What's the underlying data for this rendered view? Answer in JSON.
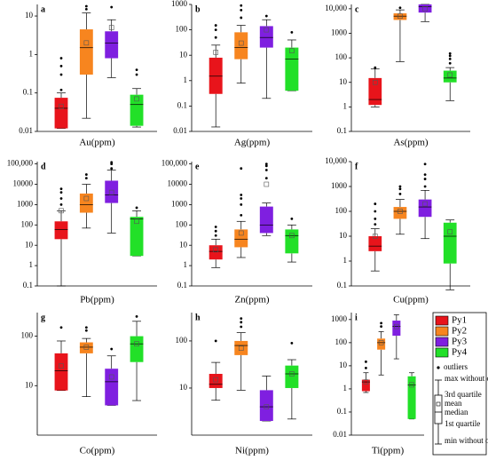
{
  "chart_data": [
    {
      "type": "box",
      "panel_label": "a",
      "x_label": "Au(ppm)",
      "log_scale": true,
      "ylim": [
        0.01,
        20
      ],
      "yticks": [
        0.01,
        0.1,
        1,
        10
      ],
      "series": [
        {
          "name": "Py1",
          "color": "#e8141b",
          "min": 0.012,
          "q1": 0.012,
          "median": 0.04,
          "q3": 0.075,
          "max": 0.1,
          "mean": 0.045,
          "outliers": [
            0.12,
            0.3,
            0.5,
            0.8
          ]
        },
        {
          "name": "Py2",
          "color": "#f7851f",
          "min": 0.022,
          "q1": 0.3,
          "median": 1.5,
          "q3": 4.5,
          "max": 12,
          "mean": 2,
          "outliers": [
            15,
            18
          ]
        },
        {
          "name": "Py3",
          "color": "#7f1fe0",
          "min": 0.25,
          "q1": 0.8,
          "median": 2,
          "q3": 4,
          "max": 8,
          "mean": 5,
          "outliers": [
            17
          ]
        },
        {
          "name": "Py4",
          "color": "#22e028",
          "min": 0.013,
          "q1": 0.014,
          "median": 0.05,
          "q3": 0.09,
          "max": 0.13,
          "mean": 0.07,
          "outliers": [
            0.3,
            0.4
          ]
        }
      ]
    },
    {
      "type": "box",
      "panel_label": "b",
      "x_label": "Ag(ppm)",
      "log_scale": true,
      "ylim": [
        0.01,
        1000
      ],
      "yticks": [
        0.01,
        0.1,
        1,
        10,
        100,
        1000
      ],
      "series": [
        {
          "name": "Py1",
          "color": "#e8141b",
          "min": 0.015,
          "q1": 0.3,
          "median": 1.5,
          "q3": 8,
          "max": 25,
          "mean": 13,
          "outliers": [
            50,
            100,
            150
          ]
        },
        {
          "name": "Py2",
          "color": "#f7851f",
          "min": 0.8,
          "q1": 7,
          "median": 20,
          "q3": 80,
          "max": 150,
          "mean": 30,
          "outliers": [
            300,
            600,
            900
          ]
        },
        {
          "name": "Py3",
          "color": "#7f1fe0",
          "min": 0.2,
          "q1": 20,
          "median": 50,
          "q3": 140,
          "max": 250,
          "mean": 100,
          "outliers": [
            350
          ]
        },
        {
          "name": "Py4",
          "color": "#22e028",
          "min": 0.4,
          "q1": 0.4,
          "median": 7,
          "q3": 20,
          "max": 40,
          "mean": 15,
          "outliers": [
            80
          ]
        }
      ]
    },
    {
      "type": "box",
      "panel_label": "c",
      "x_label": "As(ppm)",
      "log_scale": true,
      "ylim": [
        0.1,
        15000
      ],
      "yticks": [
        0.1,
        1,
        10,
        100,
        1000,
        {
          "value": 10000,
          "label": "10,000"
        }
      ],
      "series": [
        {
          "name": "Py1",
          "color": "#e8141b",
          "min": 1,
          "q1": 1.2,
          "median": 2,
          "q3": 15,
          "max": 35,
          "mean": 10,
          "outliers": [
            40
          ]
        },
        {
          "name": "Py2",
          "color": "#f7851f",
          "min": 70,
          "q1": 3500,
          "median": 5000,
          "q3": 6500,
          "max": 9000,
          "mean": 5000,
          "outliers": [
            11000
          ]
        },
        {
          "name": "Py3",
          "color": "#7f1fe0",
          "min": 3000,
          "q1": 7000,
          "median": 12000,
          "q3": 15000,
          "max": 15000,
          "mean": 10000,
          "outliers": []
        },
        {
          "name": "Py4",
          "color": "#22e028",
          "min": 1.8,
          "q1": 10,
          "median": 15,
          "q3": 30,
          "max": 40,
          "mean": 20,
          "outliers": [
            60,
            90,
            120,
            150
          ]
        }
      ]
    },
    {
      "type": "box",
      "panel_label": "d",
      "x_label": "Pb(ppm)",
      "log_scale": true,
      "ylim": [
        0.1,
        130000
      ],
      "yticks": [
        0.1,
        1,
        10,
        100,
        1000,
        10000,
        {
          "value": 100000,
          "label": "100,000"
        }
      ],
      "series": [
        {
          "name": "Py1",
          "color": "#e8141b",
          "min": 0.1,
          "q1": 20,
          "median": 60,
          "q3": 150,
          "max": 500,
          "mean": 500,
          "outliers": [
            1000,
            2000,
            4000,
            6000
          ]
        },
        {
          "name": "Py2",
          "color": "#f7851f",
          "min": 70,
          "q1": 400,
          "median": 1000,
          "q3": 3500,
          "max": 10000,
          "mean": 2000,
          "outliers": [
            20000,
            30000
          ]
        },
        {
          "name": "Py3",
          "color": "#7f1fe0",
          "min": 40,
          "q1": 1200,
          "median": 3000,
          "q3": 15000,
          "max": 50000,
          "mean": 4000,
          "outliers": [
            60000,
            100000,
            120000
          ]
        },
        {
          "name": "Py4",
          "color": "#22e028",
          "min": 3,
          "q1": 3,
          "median": 200,
          "q3": 250,
          "max": 500,
          "mean": 150,
          "outliers": [
            700
          ]
        }
      ]
    },
    {
      "type": "box",
      "panel_label": "e",
      "x_label": "Zn(ppm)",
      "log_scale": true,
      "ylim": [
        0.1,
        130000
      ],
      "yticks": [
        0.1,
        1,
        10,
        100,
        1000,
        10000,
        {
          "value": 100000,
          "label": "100,000"
        }
      ],
      "series": [
        {
          "name": "Py1",
          "color": "#e8141b",
          "min": 0.8,
          "q1": 2,
          "median": 5,
          "q3": 10,
          "max": 20,
          "mean": 6,
          "outliers": [
            30,
            50,
            80
          ]
        },
        {
          "name": "Py2",
          "color": "#f7851f",
          "min": 2.5,
          "q1": 8,
          "median": 20,
          "q3": 60,
          "max": 150,
          "mean": 40,
          "outliers": [
            300,
            1000,
            2000,
            3000,
            60000
          ]
        },
        {
          "name": "Py3",
          "color": "#7f1fe0",
          "min": 30,
          "q1": 40,
          "median": 100,
          "q3": 800,
          "max": 1200,
          "mean": 10000,
          "outliers": [
            20000,
            50000,
            80000,
            100000
          ]
        },
        {
          "name": "Py4",
          "color": "#22e028",
          "min": 1.5,
          "q1": 4,
          "median": 30,
          "q3": 60,
          "max": 100,
          "mean": 30,
          "outliers": [
            200
          ]
        }
      ]
    },
    {
      "type": "box",
      "panel_label": "f",
      "x_label": "Cu(ppm)",
      "log_scale": true,
      "ylim": [
        0.1,
        10000
      ],
      "yticks": [
        0.1,
        1,
        10,
        100,
        1000,
        {
          "value": 10000,
          "label": "10,000"
        }
      ],
      "series": [
        {
          "name": "Py1",
          "color": "#e8141b",
          "min": 0.4,
          "q1": 2.5,
          "median": 4,
          "q3": 10,
          "max": 20,
          "mean": 10,
          "outliers": [
            30,
            50,
            100,
            200
          ]
        },
        {
          "name": "Py2",
          "color": "#f7851f",
          "min": 12,
          "q1": 50,
          "median": 100,
          "q3": 150,
          "max": 300,
          "mean": 100,
          "outliers": [
            500,
            800,
            1000
          ]
        },
        {
          "name": "Py3",
          "color": "#7f1fe0",
          "min": 8,
          "q1": 60,
          "median": 150,
          "q3": 300,
          "max": 700,
          "mean": 200,
          "outliers": [
            1000,
            2000,
            3000,
            8000
          ]
        },
        {
          "name": "Py4",
          "color": "#22e028",
          "min": 0.07,
          "q1": 0.8,
          "median": 10,
          "q3": 35,
          "max": 45,
          "mean": 15,
          "outliers": []
        }
      ]
    },
    {
      "type": "box",
      "panel_label": "g",
      "x_label": "Co(ppm)",
      "log_scale": true,
      "ylim": [
        1,
        300
      ],
      "yticks": [
        10,
        100
      ],
      "series": [
        {
          "name": "Py1",
          "color": "#e8141b",
          "min": 8,
          "q1": 8,
          "median": 20,
          "q3": 45,
          "max": 80,
          "mean": 25,
          "outliers": [
            150
          ]
        },
        {
          "name": "Py2",
          "color": "#f7851f",
          "min": 6,
          "q1": 45,
          "median": 60,
          "q3": 75,
          "max": 90,
          "mean": 60,
          "outliers": [
            130,
            150
          ]
        },
        {
          "name": "Py3",
          "color": "#7f1fe0",
          "min": 4,
          "q1": 4,
          "median": 12,
          "q3": 22,
          "max": 40,
          "mean": 15,
          "outliers": [
            55
          ]
        },
        {
          "name": "Py4",
          "color": "#22e028",
          "min": 5,
          "q1": 30,
          "median": 70,
          "q3": 100,
          "max": 200,
          "mean": 70,
          "outliers": [
            250
          ]
        }
      ]
    },
    {
      "type": "box",
      "panel_label": "h",
      "x_label": "Ni(ppm)",
      "log_scale": true,
      "ylim": [
        1,
        400
      ],
      "yticks": [
        10,
        100
      ],
      "series": [
        {
          "name": "Py1",
          "color": "#e8141b",
          "min": 5.5,
          "q1": 10,
          "median": 12,
          "q3": 20,
          "max": 35,
          "mean": 15,
          "outliers": [
            100
          ]
        },
        {
          "name": "Py2",
          "color": "#f7851f",
          "min": 9,
          "q1": 50,
          "median": 80,
          "q3": 100,
          "max": 150,
          "mean": 70,
          "outliers": [
            200,
            250,
            300
          ]
        },
        {
          "name": "Py3",
          "color": "#7f1fe0",
          "min": 2,
          "q1": 2,
          "median": 4,
          "q3": 9,
          "max": 18,
          "mean": 4,
          "outliers": []
        },
        {
          "name": "Py4",
          "color": "#22e028",
          "min": 2.2,
          "q1": 10,
          "median": 20,
          "q3": 30,
          "max": 40,
          "mean": 20,
          "outliers": [
            90
          ]
        }
      ]
    },
    {
      "type": "box",
      "panel_label": "i",
      "x_label": "Ti(ppm)",
      "log_scale": true,
      "ylim": [
        0.01,
        2000
      ],
      "yticks": [
        0.01,
        0.1,
        1,
        10,
        100,
        1000
      ],
      "series": [
        {
          "name": "Py1",
          "color": "#e8141b",
          "min": 0.7,
          "q1": 0.8,
          "median": 2,
          "q3": 2.5,
          "max": 5,
          "mean": 2,
          "outliers": [
            8,
            15
          ]
        },
        {
          "name": "Py2",
          "color": "#f7851f",
          "min": 4,
          "q1": 50,
          "median": 100,
          "q3": 150,
          "max": 300,
          "mean": 100,
          "outliers": [
            500,
            700
          ]
        },
        {
          "name": "Py3",
          "color": "#7f1fe0",
          "min": 20,
          "q1": 200,
          "median": 500,
          "q3": 900,
          "max": 1600,
          "mean": 500,
          "outliers": []
        },
        {
          "name": "Py4",
          "color": "#22e028",
          "min": 0.05,
          "q1": 0.05,
          "median": 1.5,
          "q3": 3.5,
          "max": 5,
          "mean": 1.5,
          "outliers": []
        }
      ]
    }
  ],
  "box_key": {
    "outliers": "outliers",
    "max": "max without outliers",
    "q3": "3rd quartile",
    "mean": "mean",
    "median": "median",
    "q1": "1st quartile",
    "min": "min without outliers"
  }
}
